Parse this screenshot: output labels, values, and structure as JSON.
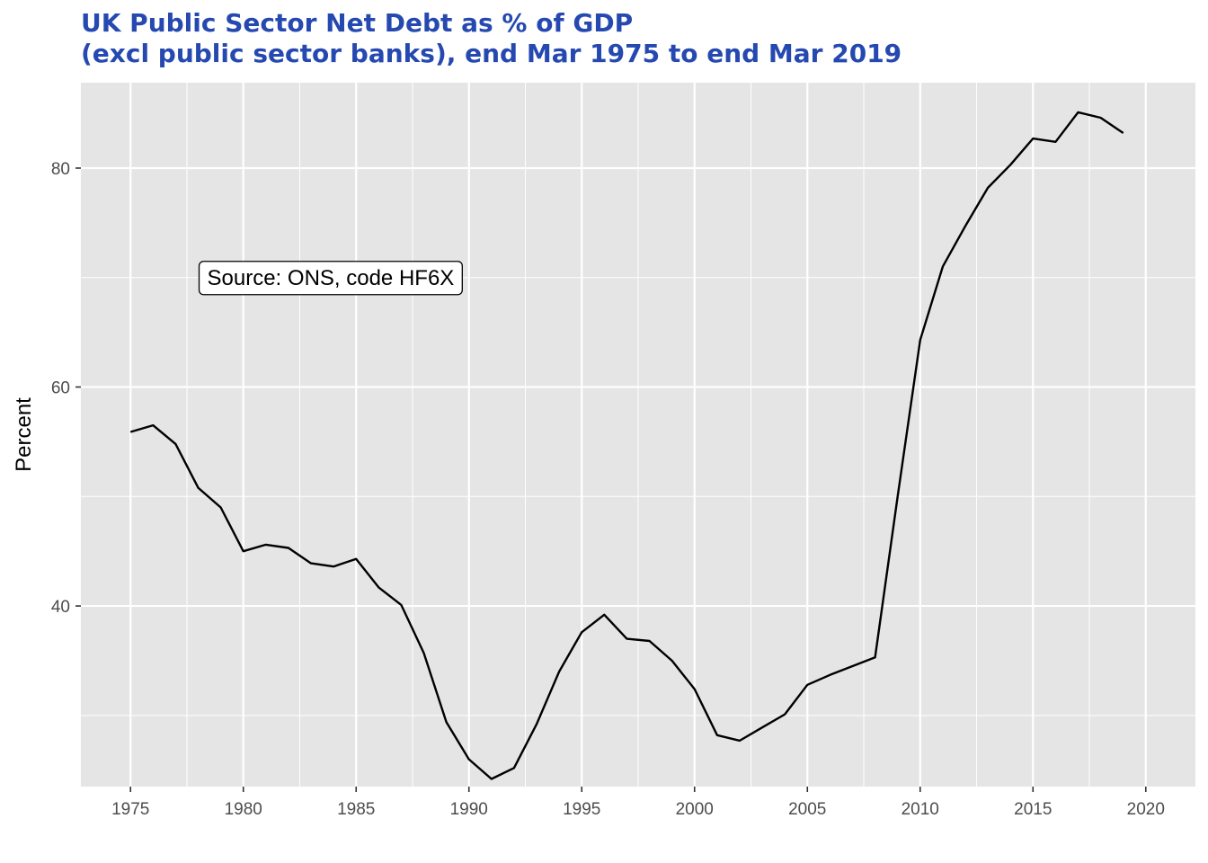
{
  "chart_data": {
    "type": "line",
    "title": "UK Public Sector Net Debt as % of GDP",
    "subtitle": "(excl public sector banks), end Mar 1975 to end Mar 2019",
    "xlabel": "",
    "ylabel": "Percent",
    "xlim": [
      1972.8,
      2022.2
    ],
    "ylim": [
      23.5,
      87.8
    ],
    "x_ticks": [
      1975,
      1980,
      1985,
      1990,
      1995,
      2000,
      2005,
      2010,
      2015,
      2020
    ],
    "x_tick_labels": [
      "1975",
      "1980",
      "1985",
      "1990",
      "1995",
      "2000",
      "2005",
      "2010",
      "2015",
      "2020"
    ],
    "y_ticks": [
      40,
      60,
      80
    ],
    "y_tick_labels": [
      "40",
      "60",
      "80"
    ],
    "grid": true,
    "annotation": {
      "text": "Source: ONS, code HF6X",
      "x": 1978,
      "y": 70
    },
    "series": [
      {
        "x": [
          1975,
          1976,
          1977,
          1978,
          1979,
          1980,
          1981,
          1982,
          1983,
          1984,
          1985,
          1986,
          1987,
          1988,
          1989,
          1990,
          1991,
          1992,
          1993,
          1994,
          1995,
          1996,
          1997,
          1998,
          1999,
          2000,
          2001,
          2002,
          2003,
          2004,
          2005,
          2006,
          2007,
          2008,
          2009,
          2010,
          2011,
          2012,
          2013,
          2014,
          2015,
          2016,
          2017,
          2018,
          2019
        ],
        "y": [
          55.9,
          56.5,
          54.8,
          50.8,
          49.0,
          45.0,
          45.6,
          45.3,
          43.9,
          43.6,
          44.3,
          41.7,
          40.1,
          35.7,
          29.4,
          26.0,
          24.2,
          25.2,
          29.2,
          34.0,
          37.6,
          39.2,
          37.0,
          36.8,
          35.0,
          32.4,
          28.2,
          27.7,
          28.9,
          30.1,
          32.8,
          33.7,
          34.5,
          35.3,
          50.0,
          64.3,
          71.0,
          74.7,
          78.2,
          80.3,
          82.7,
          82.4,
          85.1,
          84.6,
          83.2
        ],
        "color": "#000000"
      }
    ],
    "colors": {
      "title": "#2549b0",
      "panel_background": "#e5e5e5",
      "grid_major": "#ffffff",
      "line": "#000000",
      "tick_label": "#4d4d4d"
    }
  }
}
